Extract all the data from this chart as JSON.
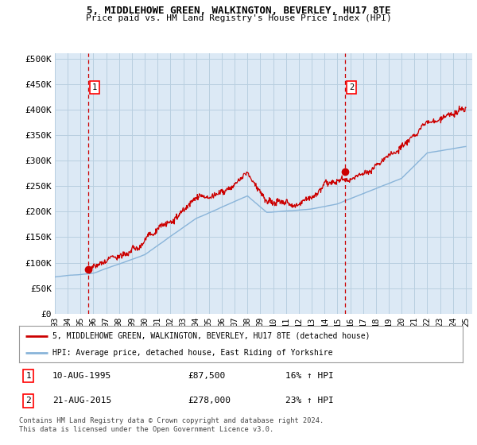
{
  "title": "5, MIDDLEHOWE GREEN, WALKINGTON, BEVERLEY, HU17 8TE",
  "subtitle": "Price paid vs. HM Land Registry's House Price Index (HPI)",
  "ylabel_ticks": [
    "£0",
    "£50K",
    "£100K",
    "£150K",
    "£200K",
    "£250K",
    "£300K",
    "£350K",
    "£400K",
    "£450K",
    "£500K"
  ],
  "ytick_values": [
    0,
    50000,
    100000,
    150000,
    200000,
    250000,
    300000,
    350000,
    400000,
    450000,
    500000
  ],
  "ylim": [
    0,
    510000
  ],
  "xlim_start": 1993.0,
  "xlim_end": 2025.5,
  "sale1_x": 1995.6,
  "sale1_y": 87500,
  "sale2_x": 2015.6,
  "sale2_y": 278000,
  "hpi_color": "#89b4d9",
  "price_color": "#cc0000",
  "bg_color": "#dce9f5",
  "grid_color": "#b8cfe0",
  "legend_label1": "5, MIDDLEHOWE GREEN, WALKINGTON, BEVERLEY, HU17 8TE (detached house)",
  "legend_label2": "HPI: Average price, detached house, East Riding of Yorkshire",
  "table_row1": [
    "1",
    "10-AUG-1995",
    "£87,500",
    "16% ↑ HPI"
  ],
  "table_row2": [
    "2",
    "21-AUG-2015",
    "£278,000",
    "23% ↑ HPI"
  ],
  "footer": "Contains HM Land Registry data © Crown copyright and database right 2024.\nThis data is licensed under the Open Government Licence v3.0.",
  "xtick_labels": [
    "93",
    "94",
    "95",
    "96",
    "97",
    "98",
    "99",
    "00",
    "01",
    "02",
    "03",
    "04",
    "05",
    "06",
    "07",
    "08",
    "09",
    "10",
    "11",
    "12",
    "13",
    "14",
    "15",
    "16",
    "17",
    "18",
    "19",
    "20",
    "21",
    "22",
    "23",
    "24",
    "25"
  ],
  "xtick_years": [
    1993,
    1994,
    1995,
    1996,
    1997,
    1998,
    1999,
    2000,
    2001,
    2002,
    2003,
    2004,
    2005,
    2006,
    2007,
    2008,
    2009,
    2010,
    2011,
    2012,
    2013,
    2014,
    2015,
    2016,
    2017,
    2018,
    2019,
    2020,
    2021,
    2022,
    2023,
    2024,
    2025
  ]
}
